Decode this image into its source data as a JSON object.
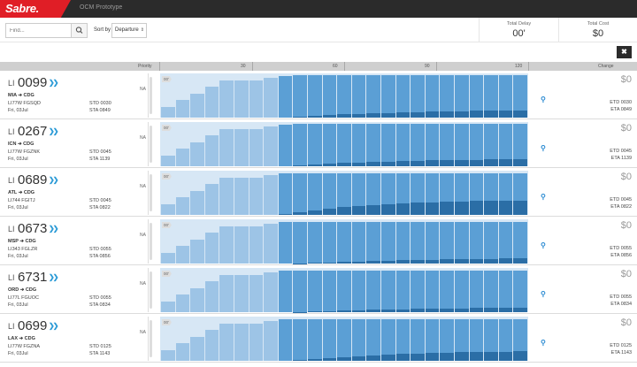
{
  "app": {
    "logo": "Sabre.",
    "title": "OCM Prototype"
  },
  "toolbar": {
    "search_placeholder": "Find...",
    "sort_label": "Sort by",
    "sort_value": "Departure",
    "total_delay_label": "Total Delay",
    "total_delay_value": "00'",
    "total_cost_label": "Total Cost",
    "total_cost_value": "$0",
    "close_label": "✖"
  },
  "header": {
    "priority": "Priority",
    "ticks": [
      "30",
      "60",
      "90",
      "120"
    ],
    "change": "Change"
  },
  "colors": {
    "light": "#cde1f3",
    "mid": "#9dc4e6",
    "strong": "#5b9fd5",
    "dark": "#2b6ea6",
    "accent": "#2a9ad6"
  },
  "flights": [
    {
      "prefix": "LI",
      "number": "0099",
      "route": "MIA ➔ CDG",
      "aircraft": "LI77W FGSQD",
      "date": "Fri, 03Jul",
      "std": "STD 0030",
      "sta": "STA 0849",
      "na": "NA",
      "delay": "00'",
      "cost": "$0",
      "etd": "ETD 0030",
      "eta": "ETA 0849",
      "bars": [
        [
          0.25,
          0,
          0
        ],
        [
          0.4,
          0,
          0
        ],
        [
          0.55,
          0,
          0
        ],
        [
          0.7,
          0,
          0
        ],
        [
          0.85,
          0,
          0
        ],
        [
          0.4,
          0.45,
          0
        ],
        [
          0.5,
          0.35,
          0
        ],
        [
          0.6,
          0.3,
          0
        ],
        [
          0,
          0.95,
          0
        ],
        [
          0,
          0.95,
          0.02
        ],
        [
          0,
          0.93,
          0.04
        ],
        [
          0,
          0.91,
          0.06
        ],
        [
          0,
          0.89,
          0.08
        ],
        [
          0,
          0.88,
          0.09
        ],
        [
          0,
          0.87,
          0.1
        ],
        [
          0,
          0.86,
          0.11
        ],
        [
          0,
          0.85,
          0.12
        ],
        [
          0,
          0.84,
          0.13
        ],
        [
          0,
          0.83,
          0.14
        ],
        [
          0,
          0.82,
          0.15
        ],
        [
          0,
          0.82,
          0.15
        ],
        [
          0,
          0.81,
          0.16
        ],
        [
          0,
          0.81,
          0.16
        ],
        [
          0,
          0.8,
          0.17
        ],
        [
          0,
          0.8,
          0.17
        ]
      ]
    },
    {
      "prefix": "LI",
      "number": "0267",
      "route": "ICN ➔ CDG",
      "aircraft": "LI77W FGZNK",
      "date": "Fri, 03Jul",
      "std": "STD 0045",
      "sta": "STA 1139",
      "na": "NA",
      "delay": "00'",
      "cost": "$0",
      "etd": "ETD 0045",
      "eta": "ETA 1139",
      "bars": [
        [
          0.25,
          0,
          0
        ],
        [
          0.4,
          0,
          0
        ],
        [
          0.55,
          0,
          0
        ],
        [
          0.7,
          0,
          0
        ],
        [
          0.85,
          0,
          0
        ],
        [
          0.4,
          0.45,
          0
        ],
        [
          0.5,
          0.35,
          0
        ],
        [
          0.6,
          0.3,
          0
        ],
        [
          0,
          0.95,
          0
        ],
        [
          0,
          0.94,
          0.02
        ],
        [
          0,
          0.92,
          0.04
        ],
        [
          0,
          0.9,
          0.06
        ],
        [
          0,
          0.88,
          0.08
        ],
        [
          0,
          0.87,
          0.09
        ],
        [
          0,
          0.86,
          0.1
        ],
        [
          0,
          0.85,
          0.11
        ],
        [
          0,
          0.84,
          0.12
        ],
        [
          0,
          0.83,
          0.13
        ],
        [
          0,
          0.82,
          0.14
        ],
        [
          0,
          0.82,
          0.14
        ],
        [
          0,
          0.81,
          0.15
        ],
        [
          0,
          0.81,
          0.15
        ],
        [
          0,
          0.8,
          0.16
        ],
        [
          0,
          0.8,
          0.16
        ],
        [
          0,
          0.79,
          0.17
        ]
      ]
    },
    {
      "prefix": "LI",
      "number": "0689",
      "route": "ATL ➔ CDG",
      "aircraft": "LI744 FGITJ",
      "date": "Fri, 03Jul",
      "std": "STD 0045",
      "sta": "STA 0822",
      "na": "NA",
      "delay": "00'",
      "cost": "$0",
      "etd": "ETD 0045",
      "eta": "ETA 0822",
      "bars": [
        [
          0.25,
          0,
          0
        ],
        [
          0.4,
          0,
          0
        ],
        [
          0.55,
          0,
          0
        ],
        [
          0.7,
          0,
          0
        ],
        [
          0.85,
          0,
          0
        ],
        [
          0.4,
          0.45,
          0
        ],
        [
          0.5,
          0.35,
          0
        ],
        [
          0.6,
          0.3,
          0
        ],
        [
          0,
          0.93,
          0.02
        ],
        [
          0,
          0.88,
          0.07
        ],
        [
          0,
          0.84,
          0.11
        ],
        [
          0,
          0.8,
          0.15
        ],
        [
          0,
          0.77,
          0.18
        ],
        [
          0,
          0.74,
          0.21
        ],
        [
          0,
          0.72,
          0.23
        ],
        [
          0,
          0.7,
          0.25
        ],
        [
          0,
          0.68,
          0.27
        ],
        [
          0,
          0.67,
          0.28
        ],
        [
          0,
          0.66,
          0.29
        ],
        [
          0,
          0.65,
          0.3
        ],
        [
          0,
          0.64,
          0.31
        ],
        [
          0,
          0.63,
          0.32
        ],
        [
          0,
          0.63,
          0.32
        ],
        [
          0,
          0.62,
          0.33
        ],
        [
          0,
          0.62,
          0.33
        ]
      ]
    },
    {
      "prefix": "LI",
      "number": "0673",
      "route": "MSP ➔ CDG",
      "aircraft": "LI343 FGLZR",
      "date": "Fri, 03Jul",
      "std": "STD 0055",
      "sta": "STA 0856",
      "na": "NA",
      "delay": "00'",
      "cost": "$0",
      "etd": "ETD 0055",
      "eta": "ETA 0856",
      "bars": [
        [
          0.25,
          0,
          0
        ],
        [
          0.4,
          0,
          0
        ],
        [
          0.55,
          0,
          0
        ],
        [
          0.7,
          0,
          0
        ],
        [
          0.85,
          0,
          0
        ],
        [
          0.4,
          0.45,
          0
        ],
        [
          0.5,
          0.35,
          0
        ],
        [
          0.6,
          0.3,
          0
        ],
        [
          0,
          0.95,
          0
        ],
        [
          0,
          0.94,
          0.01
        ],
        [
          0,
          0.93,
          0.02
        ],
        [
          0,
          0.92,
          0.03
        ],
        [
          0,
          0.91,
          0.04
        ],
        [
          0,
          0.9,
          0.05
        ],
        [
          0,
          0.89,
          0.06
        ],
        [
          0,
          0.88,
          0.07
        ],
        [
          0,
          0.87,
          0.08
        ],
        [
          0,
          0.86,
          0.09
        ],
        [
          0,
          0.86,
          0.09
        ],
        [
          0,
          0.85,
          0.1
        ],
        [
          0,
          0.85,
          0.1
        ],
        [
          0,
          0.84,
          0.11
        ],
        [
          0,
          0.84,
          0.11
        ],
        [
          0,
          0.83,
          0.12
        ],
        [
          0,
          0.83,
          0.12
        ]
      ]
    },
    {
      "prefix": "LI",
      "number": "6731",
      "route": "ORD ➔ CDG",
      "aircraft": "LI77L FGUOC",
      "date": "Fri, 03Jul",
      "std": "STD 0055",
      "sta": "STA 0834",
      "na": "NA",
      "delay": "00'",
      "cost": "$0",
      "etd": "ETD 0055",
      "eta": "ETA 0834",
      "bars": [
        [
          0.25,
          0,
          0
        ],
        [
          0.4,
          0,
          0
        ],
        [
          0.55,
          0,
          0
        ],
        [
          0.7,
          0,
          0
        ],
        [
          0.85,
          0,
          0
        ],
        [
          0.4,
          0.45,
          0
        ],
        [
          0.5,
          0.35,
          0
        ],
        [
          0.6,
          0.3,
          0
        ],
        [
          0,
          0.95,
          0
        ],
        [
          0,
          0.94,
          0.01
        ],
        [
          0,
          0.93,
          0.02
        ],
        [
          0,
          0.92,
          0.03
        ],
        [
          0,
          0.91,
          0.04
        ],
        [
          0,
          0.9,
          0.05
        ],
        [
          0,
          0.89,
          0.06
        ],
        [
          0,
          0.88,
          0.07
        ],
        [
          0,
          0.88,
          0.07
        ],
        [
          0,
          0.87,
          0.08
        ],
        [
          0,
          0.87,
          0.08
        ],
        [
          0,
          0.86,
          0.09
        ],
        [
          0,
          0.86,
          0.09
        ],
        [
          0,
          0.85,
          0.1
        ],
        [
          0,
          0.85,
          0.1
        ],
        [
          0,
          0.84,
          0.11
        ],
        [
          0,
          0.84,
          0.11
        ]
      ]
    },
    {
      "prefix": "LI",
      "number": "0699",
      "route": "LAX ➔ CDG",
      "aircraft": "LI77W FGZNA",
      "date": "Fri, 03Jul",
      "std": "STD 0125",
      "sta": "STA 1143",
      "na": "NA",
      "delay": "00'",
      "cost": "$0",
      "etd": "ETD 0125",
      "eta": "ETA 1143",
      "bars": [
        [
          0.25,
          0,
          0
        ],
        [
          0.4,
          0,
          0
        ],
        [
          0.55,
          0,
          0
        ],
        [
          0.7,
          0,
          0
        ],
        [
          0.85,
          0,
          0
        ],
        [
          0.4,
          0.45,
          0
        ],
        [
          0.5,
          0.35,
          0
        ],
        [
          0.6,
          0.3,
          0
        ],
        [
          0,
          0.95,
          0
        ],
        [
          0,
          0.93,
          0.02
        ],
        [
          0,
          0.9,
          0.05
        ],
        [
          0,
          0.88,
          0.07
        ],
        [
          0,
          0.86,
          0.09
        ],
        [
          0,
          0.84,
          0.11
        ],
        [
          0,
          0.82,
          0.13
        ],
        [
          0,
          0.8,
          0.15
        ],
        [
          0,
          0.79,
          0.16
        ],
        [
          0,
          0.78,
          0.17
        ],
        [
          0,
          0.77,
          0.18
        ],
        [
          0,
          0.76,
          0.19
        ],
        [
          0,
          0.75,
          0.2
        ],
        [
          0,
          0.75,
          0.2
        ],
        [
          0,
          0.74,
          0.21
        ],
        [
          0,
          0.74,
          0.21
        ],
        [
          0,
          0.73,
          0.22
        ]
      ]
    }
  ]
}
